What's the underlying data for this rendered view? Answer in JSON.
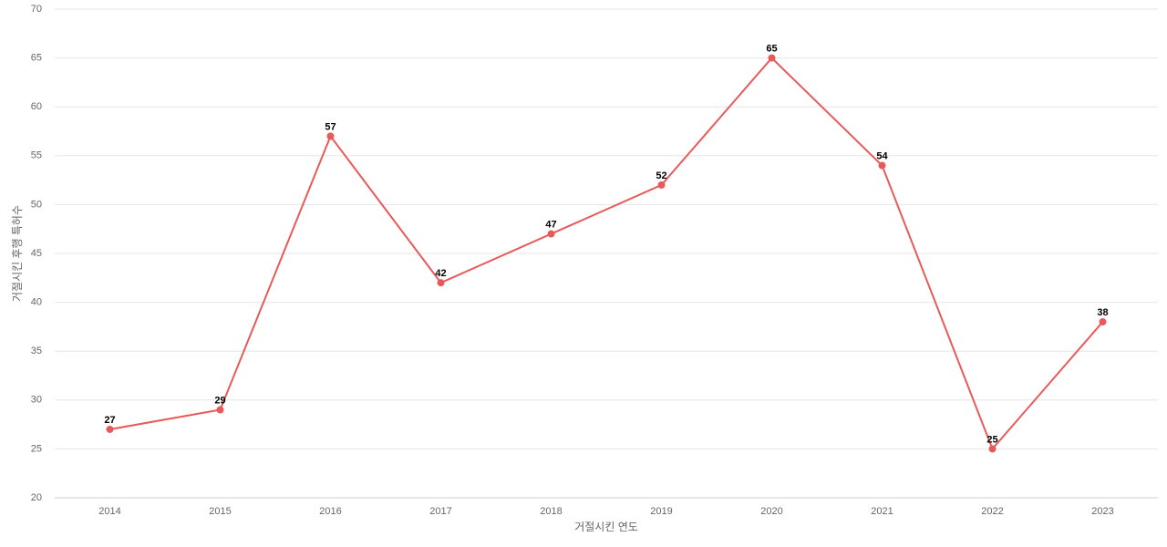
{
  "chart_data": {
    "type": "line",
    "x_label": "거절시킨 연도",
    "y_label": "거절시킨 후행 특허수",
    "categories": [
      "2014",
      "2015",
      "2016",
      "2017",
      "2018",
      "2019",
      "2020",
      "2021",
      "2022",
      "2023"
    ],
    "values": [
      27,
      29,
      57,
      42,
      47,
      52,
      65,
      54,
      25,
      38
    ],
    "color": "#e85a5a",
    "ylim": [
      20,
      70
    ],
    "yticks": [
      20,
      25,
      30,
      35,
      40,
      45,
      50,
      55,
      60,
      65,
      70
    ],
    "grid": true,
    "data_labels": true
  }
}
